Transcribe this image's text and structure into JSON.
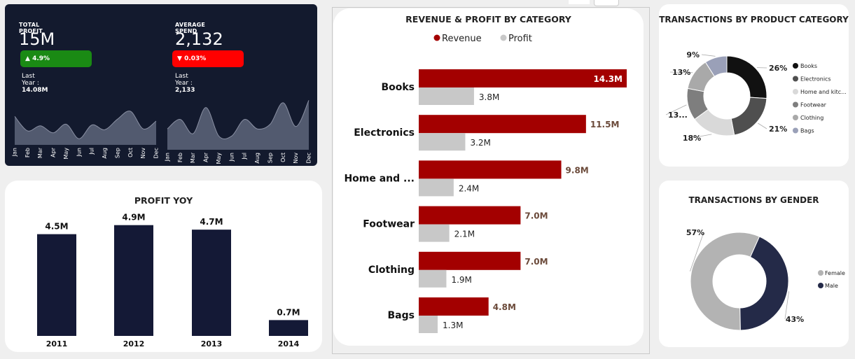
{
  "kpis": {
    "total_profit": {
      "title": "TOTAL PROFIT",
      "value": "15M",
      "change": "4.9%",
      "change_dir": "up",
      "last_year_label": "Last Year :",
      "last_year_value": "14.08M"
    },
    "average_spend": {
      "title": "AVERAGE SPEND",
      "value": "2,132",
      "change": "0.03%",
      "change_dir": "down",
      "last_year_label": "Last Year :",
      "last_year_value": "2,133"
    }
  },
  "colors": {
    "navy": "#131a2e",
    "bar_navy": "#141936",
    "revenue": "#a30000",
    "profit": "#c8c8c8",
    "up": "#1a8a14",
    "down": "#ff0000",
    "area": "#5a6277"
  },
  "chart_data": [
    {
      "id": "profit-trend",
      "type": "area",
      "categories": [
        "Jan",
        "Feb",
        "Mar",
        "Apr",
        "May",
        "Jun",
        "Jul",
        "Aug",
        "Sep",
        "Oct",
        "Nov",
        "Dec"
      ],
      "values": [
        0.62,
        0.25,
        0.38,
        0.2,
        0.42,
        0.05,
        0.4,
        0.28,
        0.55,
        0.75,
        0.3,
        0.5
      ],
      "ylim": [
        0,
        1
      ]
    },
    {
      "id": "spend-trend",
      "type": "area",
      "categories": [
        "Jan",
        "Feb",
        "Mar",
        "Apr",
        "May",
        "Jun",
        "Jul",
        "Aug",
        "Sep",
        "Oct",
        "Nov",
        "Dec"
      ],
      "values": [
        0.35,
        0.55,
        0.25,
        0.8,
        0.2,
        0.2,
        0.55,
        0.35,
        0.45,
        0.9,
        0.4,
        0.95
      ],
      "ylim": [
        0,
        1
      ]
    },
    {
      "id": "profit-yoy",
      "type": "bar",
      "title": "PROFIT YOY",
      "categories": [
        "2011",
        "2012",
        "2013",
        "2014"
      ],
      "values": [
        4.5,
        4.9,
        4.7,
        0.7
      ],
      "labels": [
        "4.5M",
        "4.9M",
        "4.7M",
        "0.7M"
      ],
      "ylim": [
        0,
        5.2
      ]
    },
    {
      "id": "revenue-profit",
      "type": "bar",
      "orientation": "horizontal",
      "title": "REVENUE & PROFIT BY CATEGORY",
      "categories": [
        "Books",
        "Electronics",
        "Home and ...",
        "Footwear",
        "Clothing",
        "Bags"
      ],
      "series": [
        {
          "name": "Revenue",
          "values": [
            14.3,
            11.5,
            9.8,
            7.0,
            7.0,
            4.8
          ],
          "labels": [
            "14.3M",
            "11.5M",
            "9.8M",
            "7.0M",
            "7.0M",
            "4.8M"
          ]
        },
        {
          "name": "Profit",
          "values": [
            3.8,
            3.2,
            2.4,
            2.1,
            1.9,
            1.3
          ],
          "labels": [
            "3.8M",
            "3.2M",
            "2.4M",
            "2.1M",
            "1.9M",
            "1.3M"
          ]
        }
      ],
      "xlim": [
        0,
        14.3
      ],
      "legend": "top"
    },
    {
      "id": "transactions-category",
      "type": "pie",
      "title": "TRANSACTIONS BY PRODUCT CATEGORY",
      "categories": [
        "Books",
        "Electronics",
        "Home and kitc...",
        "Footwear",
        "Clothing",
        "Bags"
      ],
      "values": [
        26,
        21,
        18,
        13,
        13,
        9
      ],
      "labels": [
        "26%",
        "21%",
        "18%",
        "13...",
        "13%",
        "9%"
      ],
      "colors": [
        "#111111",
        "#4f4f4f",
        "#d9d9d9",
        "#7e7e7e",
        "#a9a9a9",
        "#9aa0b8"
      ],
      "legend": "right"
    },
    {
      "id": "transactions-gender",
      "type": "pie",
      "title": "TRANSACTIONS BY GENDER",
      "categories": [
        "Female",
        "Male"
      ],
      "values": [
        57,
        43
      ],
      "labels": [
        "57%",
        "43%"
      ],
      "colors": [
        "#b3b3b3",
        "#242a48"
      ],
      "legend": "right"
    }
  ]
}
